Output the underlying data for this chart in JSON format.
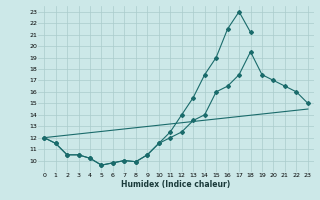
{
  "title": "",
  "xlabel": "Humidex (Indice chaleur)",
  "bg_color": "#cce8e8",
  "grid_color": "#aacccc",
  "line_color": "#1a6b6b",
  "xlim": [
    -0.5,
    23.5
  ],
  "ylim": [
    9,
    23.5
  ],
  "yticks": [
    10,
    11,
    12,
    13,
    14,
    15,
    16,
    17,
    18,
    19,
    20,
    21,
    22,
    23
  ],
  "xticks": [
    0,
    1,
    2,
    3,
    4,
    5,
    6,
    7,
    8,
    9,
    10,
    11,
    12,
    13,
    14,
    15,
    16,
    17,
    18,
    19,
    20,
    21,
    22,
    23
  ],
  "series1_x": [
    0,
    1,
    2,
    3,
    4,
    5,
    6,
    7,
    8,
    9,
    10,
    11,
    12,
    13,
    14,
    15,
    16,
    17,
    18
  ],
  "series1_y": [
    12,
    11.5,
    10.5,
    10.5,
    10.2,
    9.6,
    9.8,
    10.0,
    9.9,
    10.5,
    11.5,
    12.5,
    14.0,
    15.5,
    17.5,
    19.0,
    21.5,
    23.0,
    21.2
  ],
  "series2_x": [
    0,
    1,
    2,
    3,
    4,
    5,
    6,
    7,
    8,
    9,
    10,
    11,
    12,
    13,
    14,
    15,
    16,
    17,
    18,
    19,
    20,
    21,
    22,
    23
  ],
  "series2_y": [
    12,
    11.5,
    10.5,
    10.5,
    10.2,
    9.6,
    9.8,
    10.0,
    9.9,
    10.5,
    11.5,
    12.0,
    12.5,
    13.5,
    14.0,
    16.0,
    16.5,
    17.5,
    19.5,
    17.5,
    17.0,
    16.5,
    16.0,
    15.0
  ],
  "series3_x": [
    0,
    23
  ],
  "series3_y": [
    12.0,
    14.5
  ]
}
